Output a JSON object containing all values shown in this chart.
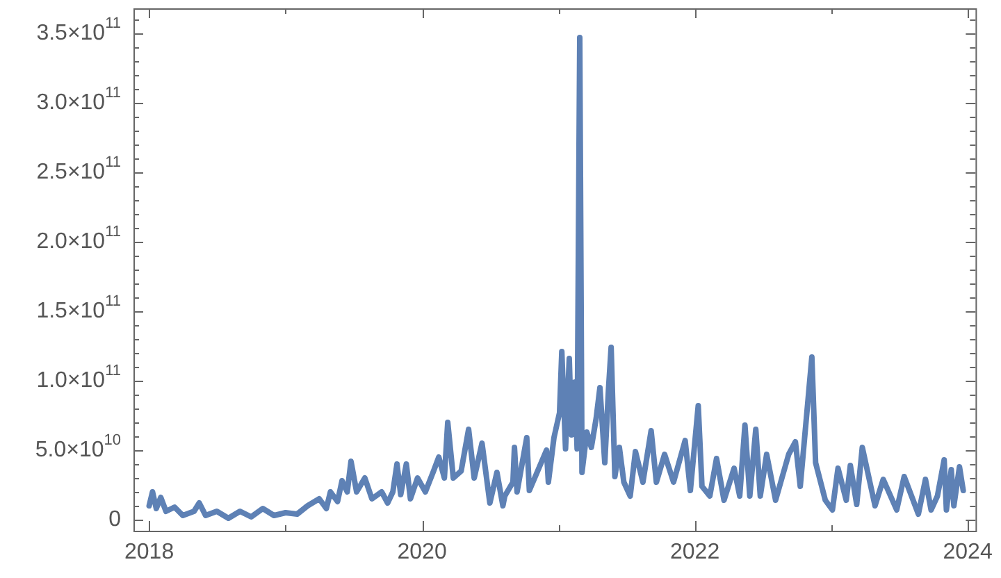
{
  "chart_data": {
    "type": "line",
    "color": "#5e81b5",
    "line_style": "solid",
    "marker": "none",
    "grid": false,
    "legend": false,
    "x": [
      "2018-01-01",
      "2018-01-10",
      "2018-01-20",
      "2018-02-01",
      "2018-02-15",
      "2018-03-10",
      "2018-04-01",
      "2018-05-01",
      "2018-05-15",
      "2018-06-01",
      "2018-07-01",
      "2018-08-01",
      "2018-09-01",
      "2018-10-01",
      "2018-11-01",
      "2018-12-01",
      "2019-01-01",
      "2019-02-01",
      "2019-03-01",
      "2019-04-01",
      "2019-04-20",
      "2019-05-01",
      "2019-05-20",
      "2019-06-01",
      "2019-06-15",
      "2019-06-25",
      "2019-07-10",
      "2019-08-01",
      "2019-08-20",
      "2019-09-15",
      "2019-10-01",
      "2019-10-15",
      "2019-10-26",
      "2019-11-05",
      "2019-11-20",
      "2019-12-01",
      "2019-12-20",
      "2020-01-10",
      "2020-02-01",
      "2020-02-15",
      "2020-03-01",
      "2020-03-10",
      "2020-03-25",
      "2020-04-15",
      "2020-05-05",
      "2020-05-20",
      "2020-06-10",
      "2020-07-01",
      "2020-07-20",
      "2020-08-05",
      "2020-08-10",
      "2020-09-01",
      "2020-09-05",
      "2020-09-12",
      "2020-10-08",
      "2020-10-15",
      "2020-11-30",
      "2020-12-05",
      "2020-12-20",
      "2021-01-04",
      "2021-01-10",
      "2021-01-20",
      "2021-01-30",
      "2021-02-05",
      "2021-02-14",
      "2021-02-20",
      "2021-02-27",
      "2021-03-05",
      "2021-03-18",
      "2021-03-30",
      "2021-04-12",
      "2021-04-22",
      "2021-05-05",
      "2021-05-15",
      "2021-05-22",
      "2021-06-01",
      "2021-06-13",
      "2021-06-25",
      "2021-07-12",
      "2021-07-26",
      "2021-08-15",
      "2021-09-06",
      "2021-09-20",
      "2021-10-12",
      "2021-11-05",
      "2021-12-06",
      "2021-12-20",
      "2022-01-10",
      "2022-01-20",
      "2022-02-10",
      "2022-02-28",
      "2022-03-20",
      "2022-04-16",
      "2022-05-01",
      "2022-05-15",
      "2022-05-28",
      "2022-06-13",
      "2022-06-25",
      "2022-07-12",
      "2022-08-05",
      "2022-09-09",
      "2022-09-27",
      "2022-10-10",
      "2022-11-10",
      "2022-11-20",
      "2022-12-16",
      "2023-01-04",
      "2023-01-19",
      "2023-02-10",
      "2023-02-21",
      "2023-03-10",
      "2023-03-25",
      "2023-04-28",
      "2023-05-20",
      "2023-06-25",
      "2023-07-15",
      "2023-08-22",
      "2023-09-10",
      "2023-09-25",
      "2023-10-12",
      "2023-10-30",
      "2023-11-05",
      "2023-11-18",
      "2023-11-25",
      "2023-12-10",
      "2023-12-20"
    ],
    "values": [
      10000000000.0,
      20000000000.0,
      8000000000.0,
      16000000000.0,
      6000000000.0,
      9000000000.0,
      3000000000.0,
      6000000000.0,
      12000000000.0,
      3000000000.0,
      6000000000.0,
      1000000000.0,
      6000000000.0,
      2000000000.0,
      8000000000.0,
      3000000000.0,
      5000000000.0,
      4000000000.0,
      10000000000.0,
      15000000000.0,
      8000000000.0,
      20000000000.0,
      13000000000.0,
      28000000000.0,
      20000000000.0,
      42000000000.0,
      20000000000.0,
      30000000000.0,
      15000000000.0,
      20000000000.0,
      12000000000.0,
      20000000000.0,
      40000000000.0,
      18000000000.0,
      40000000000.0,
      15000000000.0,
      30000000000.0,
      20000000000.0,
      35000000000.0,
      45000000000.0,
      30000000000.0,
      70000000000.0,
      30000000000.0,
      35000000000.0,
      65000000000.0,
      30000000000.0,
      55000000000.0,
      12000000000.0,
      34000000000.0,
      10000000000.0,
      17000000000.0,
      27000000000.0,
      52000000000.0,
      20000000000.0,
      59000000000.0,
      21000000000.0,
      50000000000.0,
      27000000000.0,
      59000000000.0,
      77000000000.0,
      121000000000.0,
      51000000000.0,
      116000000000.0,
      61000000000.0,
      99000000000.0,
      51000000000.0,
      347000000000.0,
      34000000000.0,
      63000000000.0,
      52000000000.0,
      73000000000.0,
      95000000000.0,
      41000000000.0,
      94000000000.0,
      124000000000.0,
      31000000000.0,
      52000000000.0,
      27000000000.0,
      17000000000.0,
      49000000000.0,
      27000000000.0,
      64000000000.0,
      27000000000.0,
      47000000000.0,
      27000000000.0,
      57000000000.0,
      21000000000.0,
      82000000000.0,
      24000000000.0,
      17000000000.0,
      44000000000.0,
      14000000000.0,
      37000000000.0,
      17000000000.0,
      68000000000.0,
      17000000000.0,
      65000000000.0,
      17000000000.0,
      47000000000.0,
      14000000000.0,
      47000000000.0,
      56000000000.0,
      24000000000.0,
      117000000000.0,
      41000000000.0,
      14000000000.0,
      7000000000.0,
      37000000000.0,
      14000000000.0,
      39000000000.0,
      11000000000.0,
      52000000000.0,
      10000000000.0,
      29000000000.0,
      7000000000.0,
      31000000000.0,
      4000000000.0,
      29000000000.0,
      7000000000.0,
      17000000000.0,
      43000000000.0,
      7000000000.0,
      36000000000.0,
      10000000000.0,
      38000000000.0,
      21000000000.0
    ],
    "xlim": [
      "2017-11-20",
      "2024-01-22"
    ],
    "xticks": [
      {
        "value": "2018",
        "label": "2018"
      },
      {
        "value": "2019",
        "label": null
      },
      {
        "value": "2020",
        "label": "2020"
      },
      {
        "value": "2021",
        "label": null
      },
      {
        "value": "2022",
        "label": "2022"
      },
      {
        "value": "2023",
        "label": null
      },
      {
        "value": "2024",
        "label": "2024"
      }
    ],
    "ylim": [
      -8000000000.0,
      368000000000.0
    ],
    "yticks": [
      {
        "value": 0,
        "label": "0"
      },
      {
        "value": 10000000000.0,
        "label": null
      },
      {
        "value": 20000000000.0,
        "label": null
      },
      {
        "value": 30000000000.0,
        "label": null
      },
      {
        "value": 40000000000.0,
        "label": null
      },
      {
        "value": 50000000000.0,
        "label": "5.0×10$^{10}$"
      },
      {
        "value": 60000000000.0,
        "label": null
      },
      {
        "value": 70000000000.0,
        "label": null
      },
      {
        "value": 80000000000.0,
        "label": null
      },
      {
        "value": 90000000000.0,
        "label": null
      },
      {
        "value": 100000000000.0,
        "label": "1.0×10$^{11}$"
      },
      {
        "value": 110000000000.0,
        "label": null
      },
      {
        "value": 120000000000.0,
        "label": null
      },
      {
        "value": 130000000000.0,
        "label": null
      },
      {
        "value": 140000000000.0,
        "label": null
      },
      {
        "value": 150000000000.0,
        "label": "1.5×10$^{11}$"
      },
      {
        "value": 160000000000.0,
        "label": null
      },
      {
        "value": 170000000000.0,
        "label": null
      },
      {
        "value": 180000000000.0,
        "label": null
      },
      {
        "value": 190000000000.0,
        "label": null
      },
      {
        "value": 200000000000.0,
        "label": "2.0×10$^{11}$"
      },
      {
        "value": 210000000000.0,
        "label": null
      },
      {
        "value": 220000000000.0,
        "label": null
      },
      {
        "value": 230000000000.0,
        "label": null
      },
      {
        "value": 240000000000.0,
        "label": null
      },
      {
        "value": 250000000000.0,
        "label": "2.5×10$^{11}$"
      },
      {
        "value": 260000000000.0,
        "label": null
      },
      {
        "value": 270000000000.0,
        "label": null
      },
      {
        "value": 280000000000.0,
        "label": null
      },
      {
        "value": 290000000000.0,
        "label": null
      },
      {
        "value": 300000000000.0,
        "label": "3.0×10$^{11}$"
      },
      {
        "value": 310000000000.0,
        "label": null
      },
      {
        "value": 320000000000.0,
        "label": null
      },
      {
        "value": 330000000000.0,
        "label": null
      },
      {
        "value": 340000000000.0,
        "label": null
      },
      {
        "value": 350000000000.0,
        "label": "3.5×10$^{11}$"
      },
      {
        "value": 360000000000.0,
        "label": null
      }
    ]
  }
}
